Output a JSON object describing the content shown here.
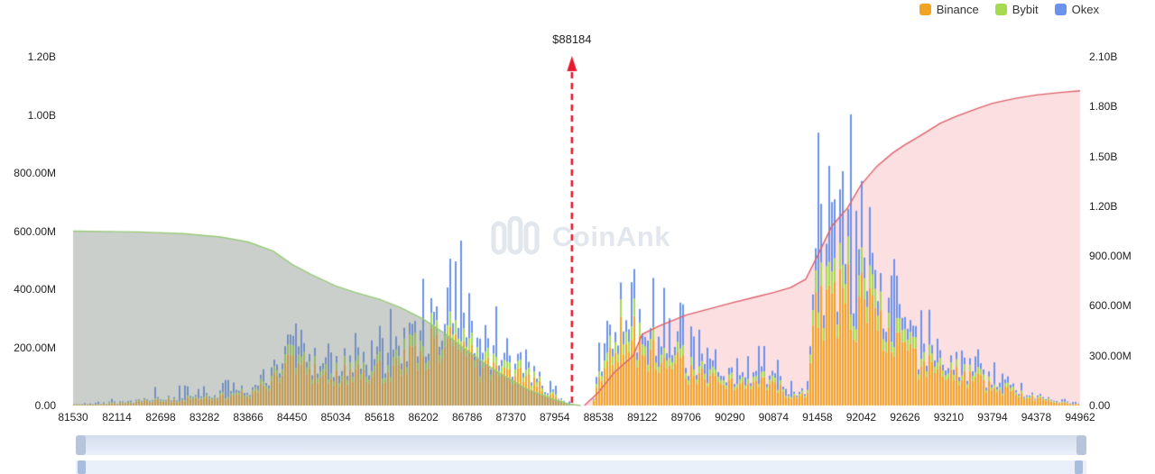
{
  "legend": {
    "items": [
      {
        "label": "Binance",
        "color": "#F2A321"
      },
      {
        "label": "Bybit",
        "color": "#A6DB4F"
      },
      {
        "label": "Okex",
        "color": "#6B93EC"
      }
    ]
  },
  "watermark": {
    "text": "CoinAnk"
  },
  "chart_data": {
    "type": "stacked-bar+cumulative-area",
    "current_price": 88184,
    "current_price_label": "$88184",
    "current_price_line_color": "#E51A2B",
    "x_axis": {
      "min": 81530,
      "max": 94962,
      "tick_labels": [
        "81530",
        "82114",
        "82698",
        "83282",
        "83866",
        "84450",
        "85034",
        "85618",
        "86202",
        "86786",
        "87370",
        "87954",
        "88538",
        "89122",
        "89706",
        "90290",
        "90874",
        "91458",
        "92042",
        "92626",
        "93210",
        "93794",
        "94378",
        "94962"
      ]
    },
    "left_axis": {
      "max_value_m": 1200,
      "tick_labels": [
        "0.00",
        "200.00M",
        "400.00M",
        "600.00M",
        "800.00M",
        "1.00B",
        "1.20B"
      ]
    },
    "right_axis": {
      "max_value_m": 2100,
      "tick_labels": [
        "0.00",
        "300.00M",
        "600.00M",
        "900.00M",
        "1.20B",
        "1.50B",
        "1.80B",
        "2.10B"
      ]
    },
    "series_shares": {
      "binance": 0.72,
      "bybit": 0.14,
      "okex": 0.14
    },
    "bars_envelope": {
      "units": "millions USD, [price, typical, peak]",
      "points": [
        [
          81530,
          4,
          8
        ],
        [
          81800,
          6,
          12
        ],
        [
          82114,
          10,
          30
        ],
        [
          82400,
          18,
          55
        ],
        [
          82698,
          25,
          70
        ],
        [
          83000,
          30,
          80
        ],
        [
          83282,
          35,
          85
        ],
        [
          83600,
          45,
          90
        ],
        [
          83866,
          60,
          110
        ],
        [
          84100,
          100,
          160
        ],
        [
          84300,
          170,
          240
        ],
        [
          84450,
          210,
          300
        ],
        [
          84650,
          170,
          240
        ],
        [
          84900,
          150,
          230
        ],
        [
          85034,
          160,
          260
        ],
        [
          85300,
          170,
          290
        ],
        [
          85618,
          180,
          310
        ],
        [
          85900,
          200,
          360
        ],
        [
          86100,
          240,
          430
        ],
        [
          86300,
          300,
          520
        ],
        [
          86500,
          340,
          620
        ],
        [
          86700,
          320,
          600
        ],
        [
          86850,
          220,
          420
        ],
        [
          87000,
          200,
          400
        ],
        [
          87200,
          190,
          380
        ],
        [
          87370,
          170,
          340
        ],
        [
          87550,
          150,
          310
        ],
        [
          87700,
          100,
          200
        ],
        [
          87954,
          45,
          100
        ],
        [
          88100,
          10,
          25
        ],
        [
          88184,
          2,
          5
        ],
        [
          88300,
          0,
          0
        ],
        [
          88430,
          0,
          0
        ],
        [
          88538,
          120,
          260
        ],
        [
          88700,
          280,
          520
        ],
        [
          88850,
          340,
          640
        ],
        [
          88950,
          360,
          750
        ],
        [
          89122,
          300,
          640
        ],
        [
          89300,
          250,
          500
        ],
        [
          89450,
          220,
          430
        ],
        [
          89600,
          200,
          420
        ],
        [
          89706,
          180,
          370
        ],
        [
          89900,
          140,
          260
        ],
        [
          90100,
          120,
          220
        ],
        [
          90290,
          110,
          200
        ],
        [
          90500,
          95,
          180
        ],
        [
          90700,
          110,
          230
        ],
        [
          90874,
          120,
          260
        ],
        [
          91000,
          70,
          140
        ],
        [
          91150,
          50,
          100
        ],
        [
          91300,
          45,
          90
        ],
        [
          91400,
          350,
          700
        ],
        [
          91458,
          520,
          950
        ],
        [
          91600,
          560,
          1000
        ],
        [
          91750,
          580,
          1080
        ],
        [
          91900,
          560,
          1100
        ],
        [
          92042,
          500,
          900
        ],
        [
          92200,
          420,
          700
        ],
        [
          92350,
          350,
          600
        ],
        [
          92500,
          300,
          500
        ],
        [
          92626,
          260,
          450
        ],
        [
          92800,
          220,
          380
        ],
        [
          93000,
          190,
          330
        ],
        [
          93210,
          160,
          270
        ],
        [
          93400,
          140,
          230
        ],
        [
          93600,
          120,
          200
        ],
        [
          93794,
          100,
          170
        ],
        [
          94000,
          70,
          125
        ],
        [
          94200,
          50,
          90
        ],
        [
          94378,
          35,
          60
        ],
        [
          94600,
          20,
          38
        ],
        [
          94800,
          10,
          20
        ],
        [
          94962,
          4,
          10
        ]
      ]
    },
    "cumulative_short_area": {
      "axis": "right",
      "fill_color": "rgba(130,140,130,0.42)",
      "line_color": "#97CB77",
      "points": [
        [
          81530,
          1050
        ],
        [
          82400,
          1045
        ],
        [
          83000,
          1035
        ],
        [
          83500,
          1015
        ],
        [
          83866,
          985
        ],
        [
          84200,
          930
        ],
        [
          84450,
          850
        ],
        [
          84700,
          790
        ],
        [
          85034,
          720
        ],
        [
          85300,
          680
        ],
        [
          85618,
          640
        ],
        [
          85900,
          590
        ],
        [
          86202,
          520
        ],
        [
          86500,
          430
        ],
        [
          86786,
          330
        ],
        [
          87000,
          260
        ],
        [
          87200,
          200
        ],
        [
          87370,
          155
        ],
        [
          87600,
          95
        ],
        [
          87954,
          35
        ],
        [
          88150,
          8
        ],
        [
          88300,
          0
        ]
      ]
    },
    "cumulative_long_area": {
      "axis": "right",
      "fill_color": "rgba(246,150,155,0.30)",
      "line_color": "#DD5F6B",
      "points": [
        [
          88350,
          0
        ],
        [
          88538,
          80
        ],
        [
          88750,
          200
        ],
        [
          89000,
          300
        ],
        [
          89122,
          430
        ],
        [
          89350,
          480
        ],
        [
          89706,
          545
        ],
        [
          90000,
          580
        ],
        [
          90290,
          615
        ],
        [
          90600,
          650
        ],
        [
          90874,
          680
        ],
        [
          91100,
          710
        ],
        [
          91300,
          760
        ],
        [
          91458,
          900
        ],
        [
          91650,
          1080
        ],
        [
          91860,
          1190
        ],
        [
          92042,
          1330
        ],
        [
          92250,
          1440
        ],
        [
          92460,
          1520
        ],
        [
          92626,
          1570
        ],
        [
          92850,
          1630
        ],
        [
          93100,
          1700
        ],
        [
          93300,
          1740
        ],
        [
          93600,
          1790
        ],
        [
          93794,
          1820
        ],
        [
          94100,
          1850
        ],
        [
          94378,
          1870
        ],
        [
          94700,
          1885
        ],
        [
          94962,
          1895
        ]
      ]
    }
  }
}
